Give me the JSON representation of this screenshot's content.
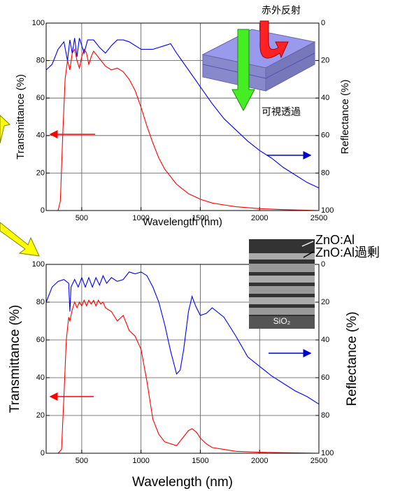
{
  "chart_data": [
    {
      "type": "line",
      "xlabel": "Wavelength (nm)",
      "ylabel": "Transmittance (%)",
      "y2label": "Reflectance (%)",
      "xlim": [
        200,
        2500
      ],
      "xticks": [
        500,
        1000,
        1500,
        2000,
        2500
      ],
      "ylim": [
        0,
        100
      ],
      "yticks": [
        0,
        20,
        40,
        60,
        80,
        100
      ],
      "y2lim": [
        100,
        0
      ],
      "y2ticks": [
        0,
        20,
        40,
        60,
        80,
        100
      ],
      "grid": true,
      "annotations": [
        "赤外反射",
        "可視透過"
      ],
      "series": [
        {
          "color": "#ff0000",
          "x": [
            200,
            300,
            320,
            340,
            360,
            380,
            400,
            420,
            440,
            460,
            480,
            500,
            520,
            540,
            560,
            580,
            600,
            650,
            700,
            750,
            800,
            850,
            900,
            950,
            1000,
            1050,
            1100,
            1150,
            1200,
            1300,
            1400,
            1500,
            1600,
            1700,
            1800,
            2000,
            2200,
            2500
          ],
          "values": [
            0,
            0,
            5,
            40,
            70,
            80,
            75,
            84,
            86,
            80,
            76,
            82,
            86,
            84,
            78,
            82,
            85,
            81,
            77,
            75,
            76,
            74,
            70,
            64,
            55,
            45,
            36,
            28,
            22,
            14,
            9,
            6,
            4,
            3,
            2,
            1,
            0.5,
            0
          ]
        },
        {
          "color": "#0000ff",
          "axis": "y2",
          "x": [
            200,
            250,
            300,
            350,
            380,
            400,
            420,
            440,
            460,
            480,
            500,
            520,
            550,
            600,
            650,
            700,
            750,
            800,
            850,
            900,
            1000,
            1100,
            1200,
            1250,
            1300,
            1400,
            1500,
            1600,
            1700,
            1800,
            1900,
            2000,
            2100,
            2200,
            2300,
            2400,
            2500
          ],
          "values": [
            25,
            22,
            14,
            10,
            20,
            9,
            16,
            8,
            18,
            8,
            12,
            16,
            9,
            9,
            13,
            16,
            12,
            9,
            9,
            10,
            14,
            14,
            12,
            11,
            16,
            25,
            34,
            43,
            51,
            57,
            63,
            68,
            72,
            77,
            81,
            85,
            88
          ]
        }
      ]
    },
    {
      "type": "line",
      "xlabel": "Wavelength (nm)",
      "ylabel": "Transmittance (%)",
      "y2label": "Reflectance (%)",
      "xlim": [
        200,
        2500
      ],
      "xticks": [
        500,
        1000,
        1500,
        2000,
        2500
      ],
      "ylim": [
        0,
        100
      ],
      "yticks": [
        0,
        20,
        40,
        60,
        80,
        100
      ],
      "y2lim": [
        100,
        0
      ],
      "y2ticks": [
        0,
        20,
        40,
        60,
        80,
        100
      ],
      "grid": true,
      "annotations": [
        "ZnO:Al",
        "ZnO:Al過剰",
        "SiO₂"
      ],
      "series": [
        {
          "color": "#ff0000",
          "x": [
            200,
            300,
            330,
            350,
            370,
            390,
            400,
            420,
            440,
            460,
            480,
            500,
            520,
            540,
            560,
            580,
            600,
            620,
            640,
            660,
            680,
            700,
            750,
            800,
            850,
            900,
            950,
            1000,
            1050,
            1100,
            1150,
            1200,
            1300,
            1350,
            1400,
            1430,
            1470,
            1500,
            1550,
            1600,
            1700,
            1800,
            2000,
            2500
          ],
          "values": [
            0,
            0,
            2,
            30,
            60,
            72,
            70,
            76,
            80,
            77,
            80,
            78,
            81,
            78,
            81,
            79,
            81,
            78,
            81,
            79,
            80,
            77,
            75,
            70,
            73,
            65,
            62,
            55,
            38,
            18,
            10,
            6,
            4,
            8,
            12,
            13,
            11,
            8,
            5,
            3,
            2,
            1,
            0.5,
            0
          ]
        },
        {
          "color": "#0000ff",
          "axis": "y2",
          "x": [
            200,
            250,
            300,
            350,
            390,
            400,
            410,
            440,
            470,
            500,
            530,
            560,
            590,
            620,
            650,
            680,
            710,
            750,
            800,
            850,
            900,
            950,
            1000,
            1050,
            1100,
            1150,
            1200,
            1250,
            1300,
            1330,
            1360,
            1400,
            1430,
            1460,
            1500,
            1550,
            1600,
            1700,
            1800,
            1900,
            2000,
            2100,
            2200,
            2300,
            2400,
            2500
          ],
          "values": [
            20,
            12,
            9,
            8,
            10,
            25,
            12,
            8,
            12,
            7,
            12,
            7,
            12,
            7,
            11,
            6,
            10,
            7,
            9,
            8,
            4,
            5,
            4,
            6,
            12,
            20,
            32,
            46,
            58,
            56,
            45,
            25,
            17,
            22,
            27,
            26,
            23,
            28,
            38,
            49,
            54,
            59,
            63,
            67,
            70,
            74
          ]
        }
      ]
    }
  ]
}
